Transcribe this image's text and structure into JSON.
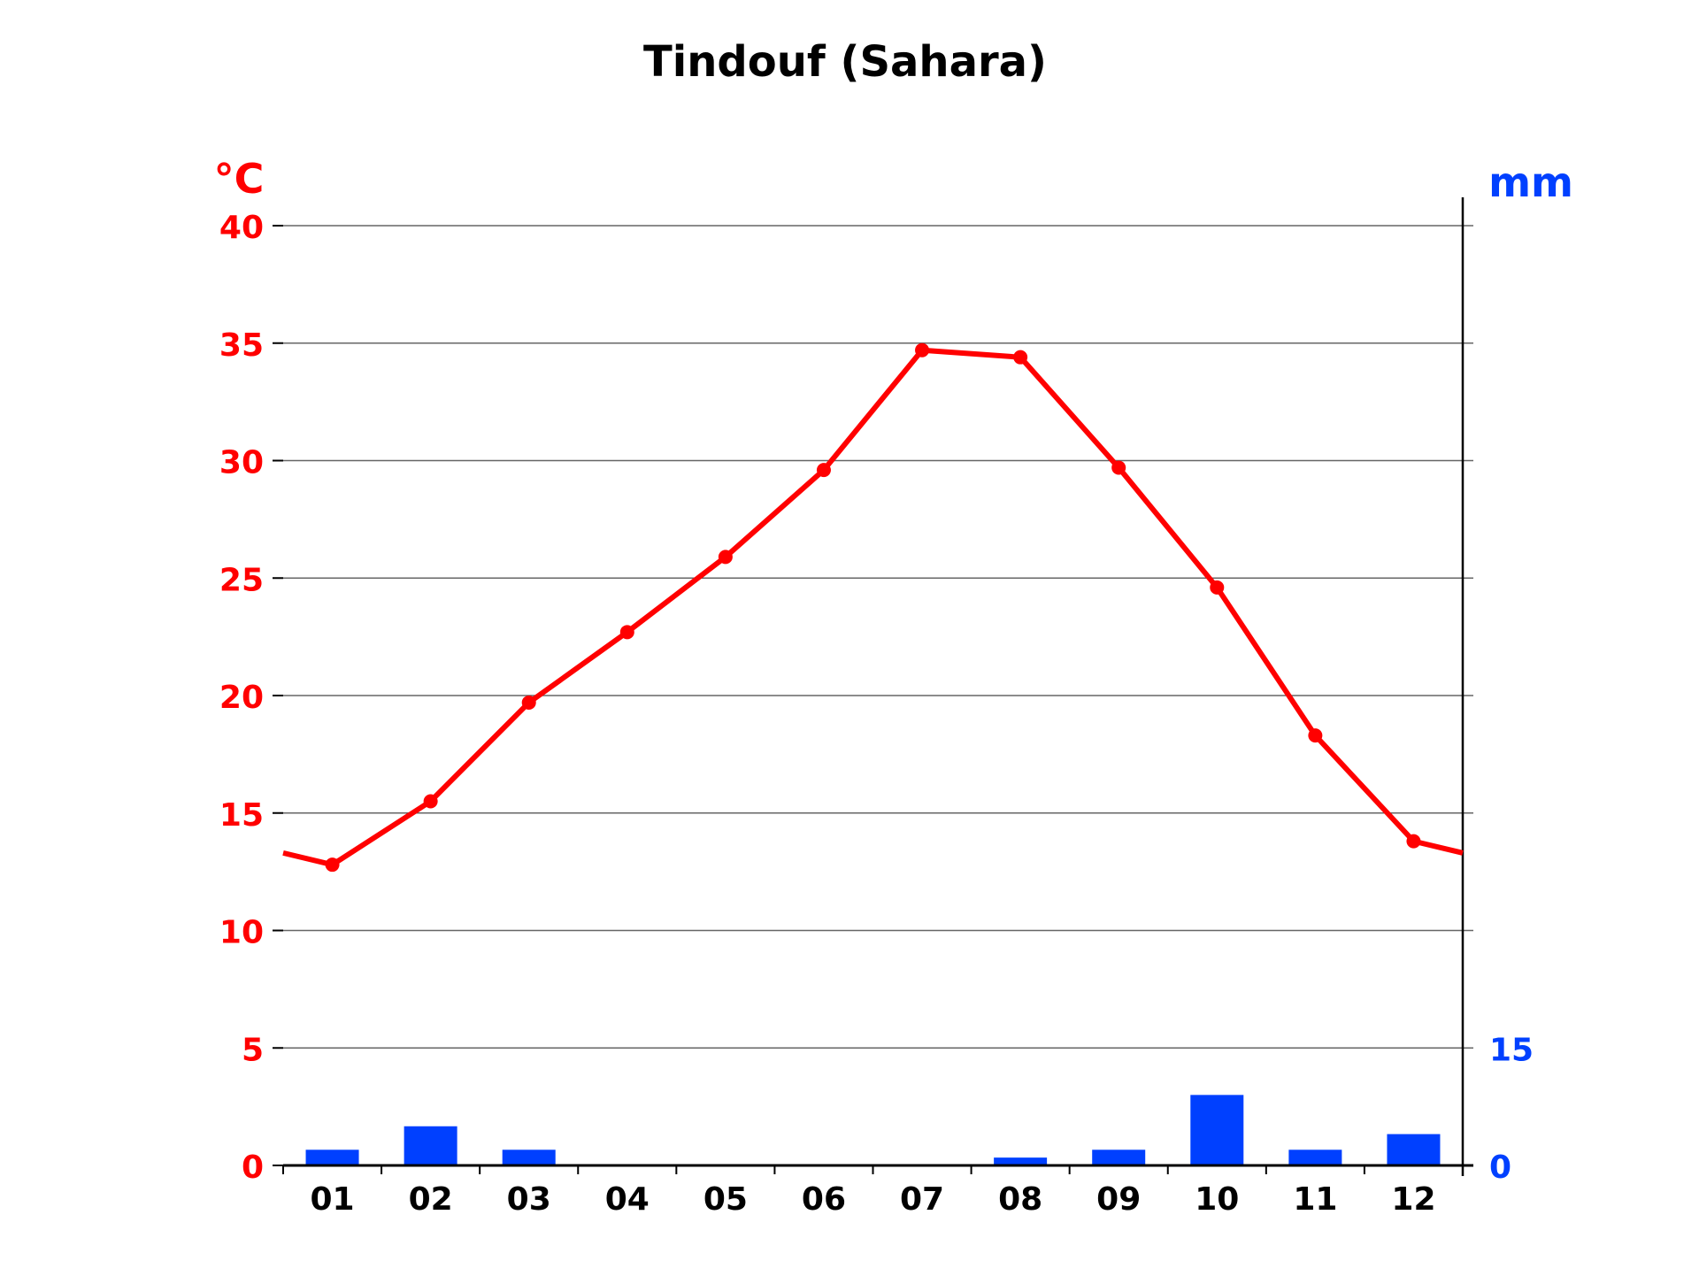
{
  "chart_data": {
    "type": "bar+line",
    "title": "Tindouf (Sahara)",
    "categories": [
      "01",
      "02",
      "03",
      "04",
      "05",
      "06",
      "07",
      "08",
      "09",
      "10",
      "11",
      "12"
    ],
    "y_left": {
      "label": "°C",
      "range": [
        0,
        40
      ],
      "ticks": [
        0,
        5,
        10,
        15,
        20,
        25,
        30,
        35,
        40
      ],
      "color": "#ff0000"
    },
    "y_right": {
      "label": "mm",
      "range": [
        0,
        120
      ],
      "tick_labels": [
        0,
        15
      ],
      "color": "#0040ff"
    },
    "grid": true,
    "series": [
      {
        "type": "line",
        "axis": "left",
        "color": "#ff0000",
        "values": [
          12.8,
          15.5,
          19.7,
          22.7,
          25.9,
          29.6,
          34.7,
          34.4,
          29.7,
          24.6,
          18.3,
          13.8
        ]
      },
      {
        "type": "bar",
        "axis": "right",
        "color": "#0040ff",
        "values": [
          2,
          5,
          2,
          0,
          0,
          0,
          0,
          1,
          2,
          9,
          2,
          4
        ]
      }
    ]
  }
}
